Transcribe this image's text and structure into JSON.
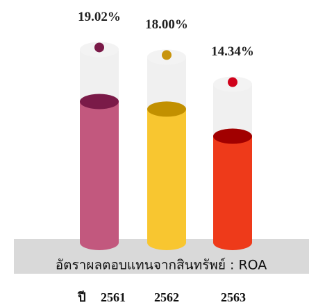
{
  "chart_data": {
    "type": "bar",
    "title": "อัตราผลตอบแทนจากสินทรัพย์ : ROA",
    "x_label": "ปี",
    "categories": [
      "2561",
      "2562",
      "2563"
    ],
    "values": [
      19.02,
      18.0,
      14.34
    ],
    "value_labels": [
      "19.02%",
      "18.00%",
      "14.34%"
    ],
    "colors": [
      "#c2587e",
      "#f8c630",
      "#ee3a1a"
    ],
    "top_colors": [
      "#7a1a48",
      "#c29000",
      "#a10000"
    ],
    "dot_colors": [
      "#7a1a48",
      "#c8940c",
      "#d0021b"
    ]
  }
}
